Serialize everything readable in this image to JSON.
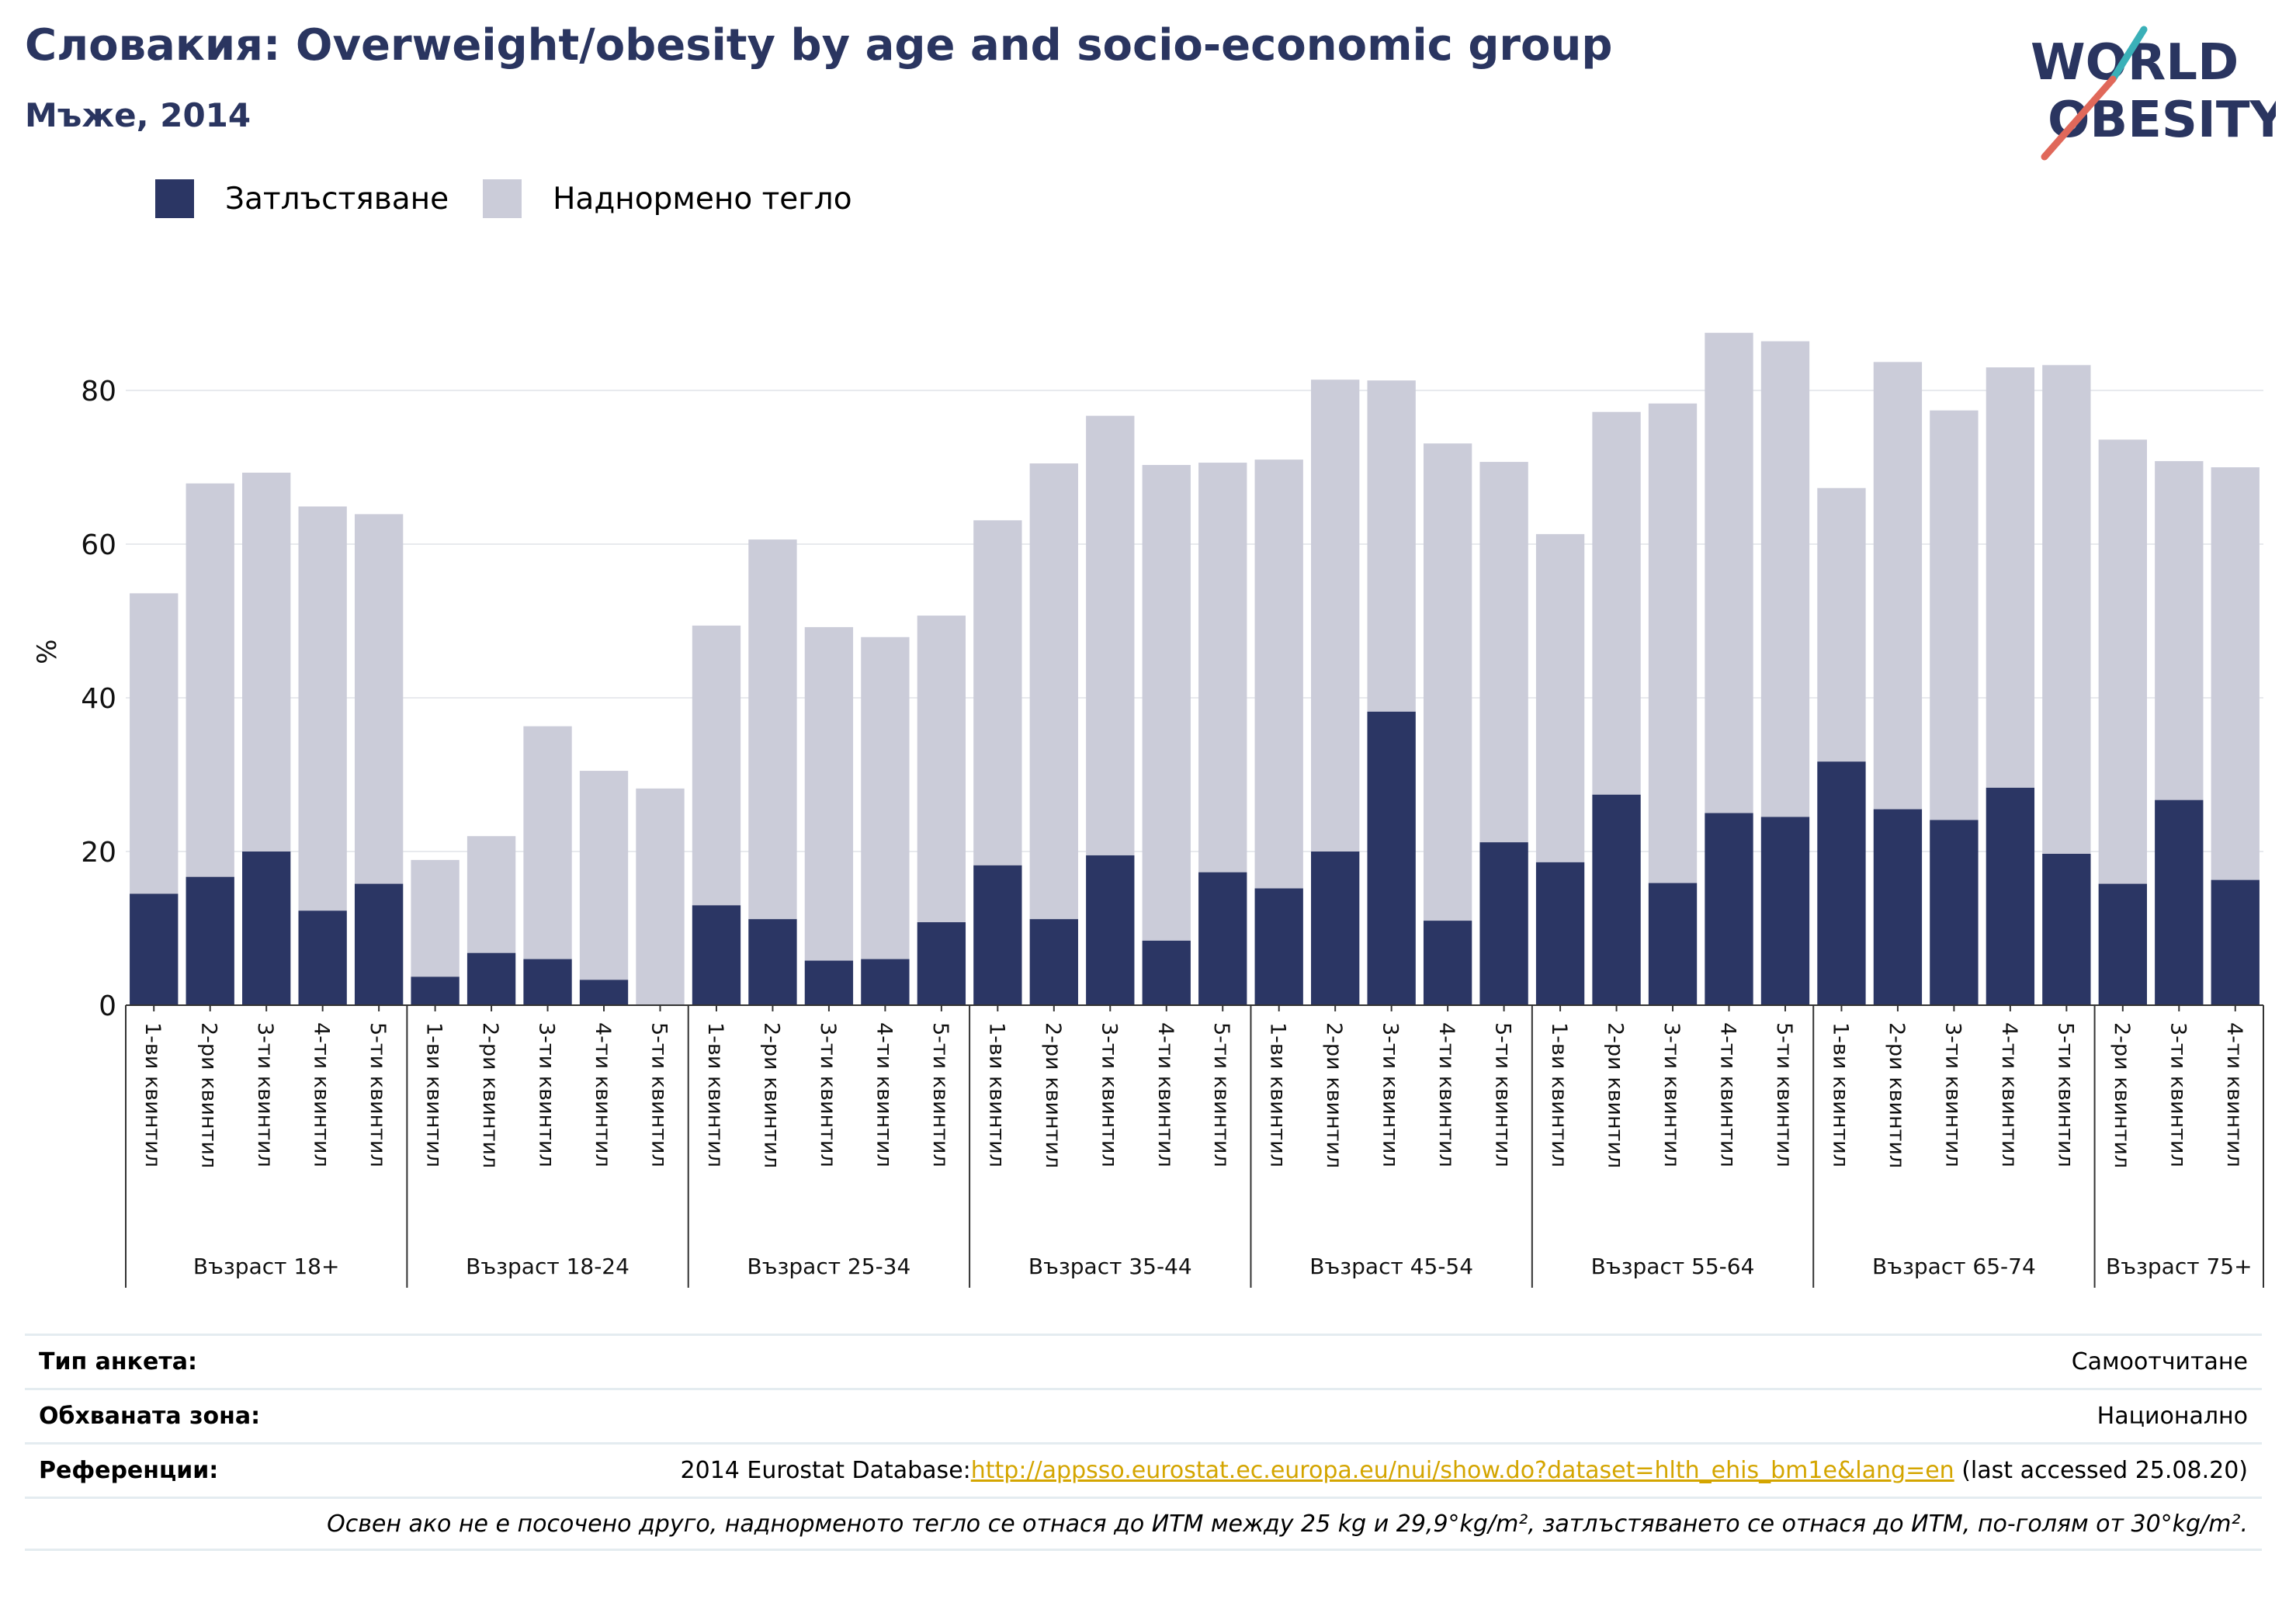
{
  "title": "Словакия: Overweight/obesity by age and socio-economic group",
  "subtitle": "Мъже, 2014",
  "logo": {
    "line1": "WORLD",
    "line2": "OBESITY",
    "accent_colors": [
      "#3ab0b8",
      "#e0685a"
    ]
  },
  "colors": {
    "obesity": "#2b3664",
    "overweight": "#cbccd9",
    "text_dark": "#2a3560",
    "link": "#d4a500"
  },
  "chart_data": {
    "type": "bar",
    "stacked": true,
    "ylabel": "%",
    "ylim": [
      0,
      92
    ],
    "yticks": [
      0,
      20,
      40,
      60,
      80
    ],
    "grid": true,
    "legend_position": "top-left",
    "series": [
      {
        "name": "Затлъстяване",
        "color": "#2b3664",
        "values": [
          14.5,
          16.7,
          20.0,
          12.3,
          15.8,
          3.7,
          6.8,
          6.0,
          3.3,
          0,
          13.0,
          11.2,
          5.8,
          6.0,
          10.8,
          18.2,
          11.2,
          19.5,
          8.4,
          17.3,
          15.2,
          20.0,
          38.2,
          11.0,
          21.2,
          18.6,
          27.4,
          15.9,
          25.0,
          24.5,
          31.7,
          25.5,
          24.1,
          28.3,
          19.7,
          15.8,
          26.7,
          16.3
        ]
      },
      {
        "name": "Наднормено тегло",
        "color": "#cbccd9",
        "values": [
          39.1,
          51.2,
          49.3,
          52.6,
          48.1,
          15.2,
          15.2,
          30.3,
          27.2,
          28.2,
          36.4,
          49.4,
          43.4,
          41.9,
          39.9,
          44.9,
          59.3,
          57.2,
          61.9,
          53.3,
          55.8,
          61.4,
          43.1,
          62.1,
          49.5,
          42.7,
          49.8,
          62.4,
          62.5,
          61.9,
          35.6,
          58.2,
          53.3,
          54.7,
          63.6,
          57.8,
          44.1,
          53.7
        ]
      }
    ],
    "categories": [
      "1-ви квинтил",
      "2-ри квинтил",
      "3-ти квинтил",
      "4-ти квинтил",
      "5-ти квинтил",
      "1-ви квинтил",
      "2-ри квинтил",
      "3-ти квинтил",
      "4-ти квинтил",
      "5-ти квинтил",
      "1-ви квинтил",
      "2-ри квинтил",
      "3-ти квинтил",
      "4-ти квинтил",
      "5-ти квинтил",
      "1-ви квинтил",
      "2-ри квинтил",
      "3-ти квинтил",
      "4-ти квинтил",
      "5-ти квинтил",
      "1-ви квинтил",
      "2-ри квинтил",
      "3-ти квинтил",
      "4-ти квинтил",
      "5-ти квинтил",
      "1-ви квинтил",
      "2-ри квинтил",
      "3-ти квинтил",
      "4-ти квинтил",
      "5-ти квинтил",
      "1-ви квинтил",
      "2-ри квинтил",
      "3-ти квинтил",
      "4-ти квинтил",
      "5-ти квинтил",
      "2-ри квинтил",
      "3-ти квинтил",
      "4-ти квинтил"
    ],
    "groups": [
      {
        "label": "Възраст 18+",
        "count": 5
      },
      {
        "label": "Възраст 18-24",
        "count": 5
      },
      {
        "label": "Възраст 25-34",
        "count": 5
      },
      {
        "label": "Възраст 35-44",
        "count": 5
      },
      {
        "label": "Възраст 45-54",
        "count": 5
      },
      {
        "label": "Възраст 55-64",
        "count": 5
      },
      {
        "label": "Възраст 65-74",
        "count": 5
      },
      {
        "label": "Възраст 75+",
        "count": 3
      }
    ]
  },
  "info": {
    "survey_label": "Тип анкета:",
    "survey_value": "Самоотчитане",
    "area_label": "Обхваната зона:",
    "area_value": "Национално",
    "ref_label": "Референции:",
    "ref_prefix": "2014 Eurostat Database:",
    "ref_link": "http://appsso.eurostat.ec.europa.eu/nui/show.do?dataset=hlth_ehis_bm1e&lang=en",
    "ref_suffix": " (last accessed 25.08.20)",
    "note": "Освен ако не е посочено друго, наднорменото тегло се отнася до ИТМ между 25 kg и 29,9°kg/m², затлъстяването се отнася до ИТМ, по-голям от 30°kg/m²."
  }
}
